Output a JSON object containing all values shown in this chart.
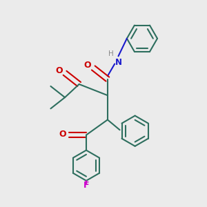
{
  "bg_color": "#ebebeb",
  "bond_color": "#2d6e5e",
  "oxygen_color": "#cc0000",
  "nitrogen_color": "#1a1acc",
  "fluorine_color": "#cc00cc",
  "hydrogen_color": "#888888",
  "line_width": 1.5,
  "xlim": [
    0,
    10
  ],
  "ylim": [
    0,
    10
  ],
  "ring_r": 0.75,
  "dbo": 0.13
}
